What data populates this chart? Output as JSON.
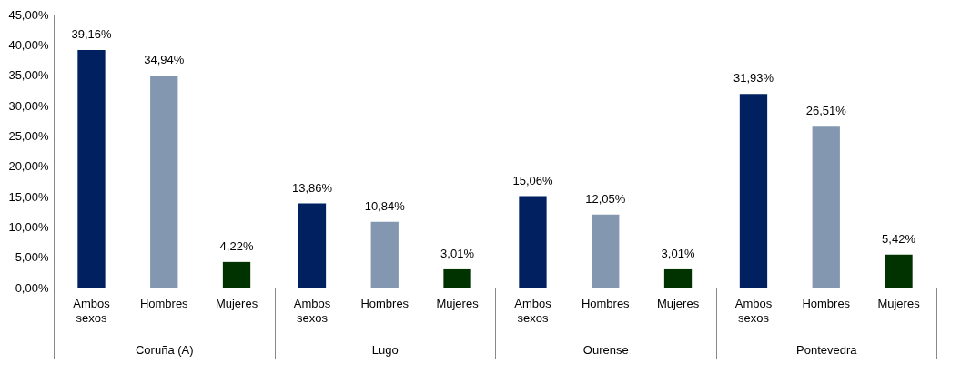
{
  "chart_data": {
    "type": "bar",
    "categories": [
      "Coruña (A)",
      "Lugo",
      "Ourense",
      "Pontevedra"
    ],
    "series": [
      {
        "name": "Ambos sexos",
        "color": "#002060",
        "values": [
          39.16,
          13.86,
          15.06,
          31.93
        ],
        "value_labels": [
          "39,16%",
          "13,86%",
          "15,06%",
          "31,93%"
        ]
      },
      {
        "name": "Hombres",
        "color": "#8497b0",
        "values": [
          34.94,
          10.84,
          12.05,
          26.51
        ],
        "value_labels": [
          "34,94%",
          "10,84%",
          "12,05%",
          "26,51%"
        ]
      },
      {
        "name": "Mujeres",
        "color": "#003300",
        "values": [
          4.22,
          3.01,
          3.01,
          5.42
        ],
        "value_labels": [
          "4,22%",
          "3,01%",
          "3,01%",
          "5,42%"
        ]
      }
    ],
    "ylim": [
      0,
      45
    ],
    "yticks": [
      {
        "value": 0,
        "label": "0,00%"
      },
      {
        "value": 5,
        "label": "5,00%"
      },
      {
        "value": 10,
        "label": "10,00%"
      },
      {
        "value": 15,
        "label": "15,00%"
      },
      {
        "value": 20,
        "label": "20,00%"
      },
      {
        "value": 25,
        "label": "25,00%"
      },
      {
        "value": 30,
        "label": "30,00%"
      },
      {
        "value": 35,
        "label": "35,00%"
      },
      {
        "value": 40,
        "label": "40,00%"
      },
      {
        "value": 45,
        "label": "45,00%"
      }
    ],
    "grid": false,
    "legend": false
  }
}
